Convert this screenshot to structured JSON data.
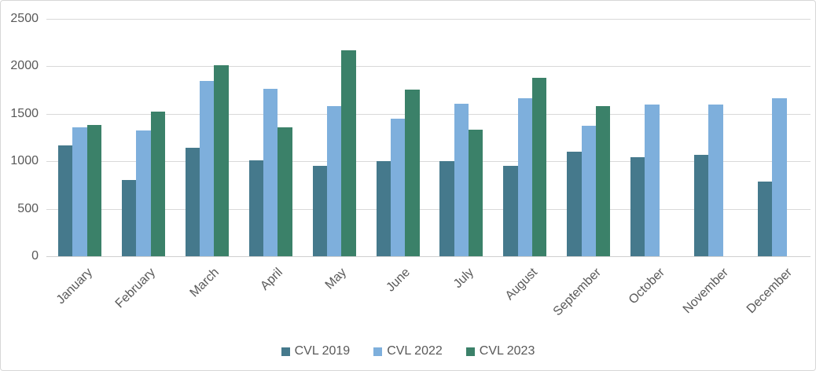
{
  "chart_data": {
    "type": "bar",
    "title": "",
    "xlabel": "",
    "ylabel": "",
    "grid": "horizontal",
    "legend_position": "bottom",
    "ylim": [
      0,
      2500
    ],
    "y_tick_step": 500,
    "y_ticks": [
      "2500",
      "2000",
      "1500",
      "1000",
      "500",
      "0"
    ],
    "categories": [
      "January",
      "February",
      "March",
      "April",
      "May",
      "June",
      "July",
      "August",
      "September",
      "October",
      "November",
      "December"
    ],
    "series": [
      {
        "name": "CVL 2019",
        "color": "#45798C",
        "values": [
          1170,
          800,
          1140,
          1010,
          950,
          1000,
          1000,
          955,
          1100,
          1045,
          1065,
          790
        ]
      },
      {
        "name": "CVL 2022",
        "color": "#7EAFDC",
        "values": [
          1355,
          1325,
          1845,
          1765,
          1580,
          1445,
          1610,
          1665,
          1375,
          1600,
          1600,
          1660
        ]
      },
      {
        "name": "CVL 2023",
        "color": "#3B8169",
        "values": [
          1380,
          1520,
          2010,
          1355,
          2170,
          1755,
          1335,
          1880,
          1580,
          null,
          null,
          null
        ]
      }
    ],
    "colors": {
      "gridline": "#d9d9d9",
      "axis_text": "#595959",
      "background": "#ffffff",
      "border": "#d7d7d7"
    }
  }
}
